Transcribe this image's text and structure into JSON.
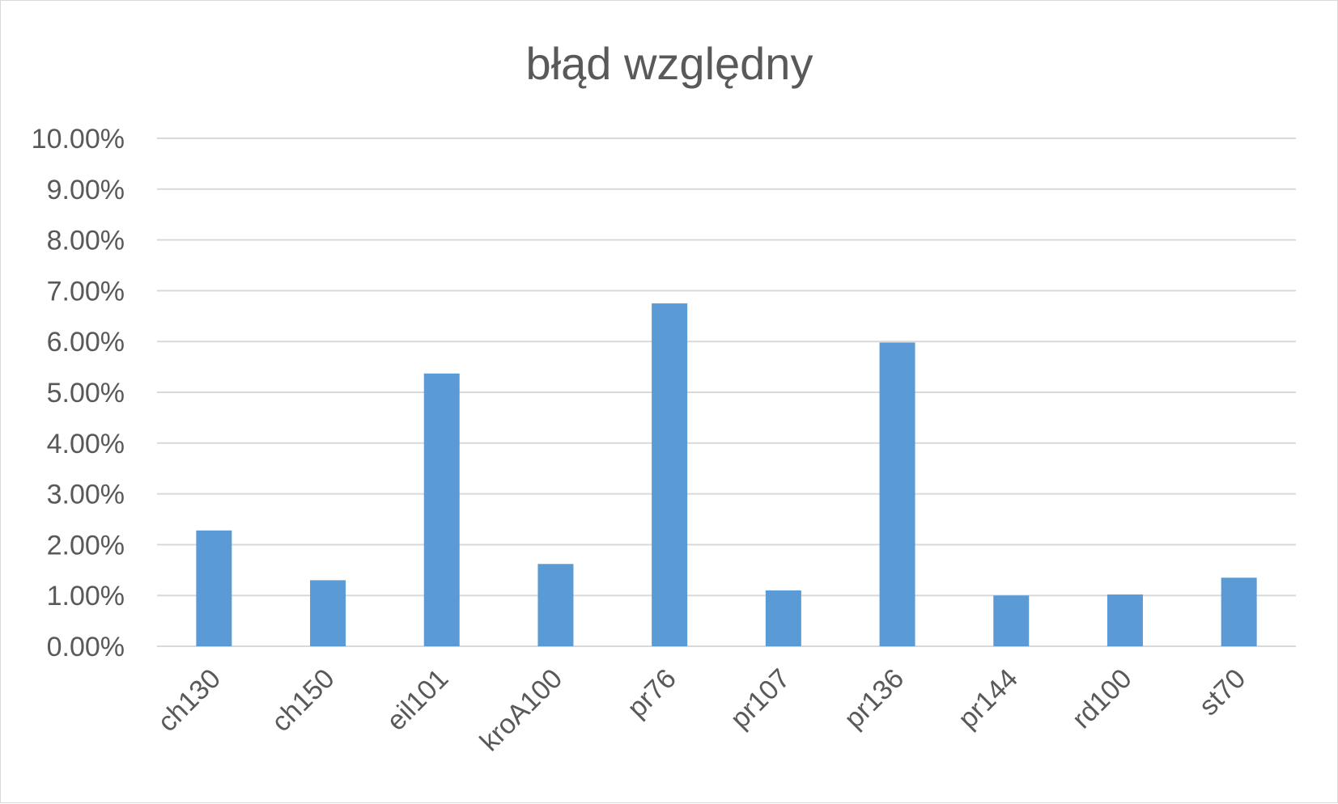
{
  "chart_data": {
    "type": "bar",
    "title": "błąd względny",
    "xlabel": "",
    "ylabel": "",
    "categories": [
      "ch130",
      "ch150",
      "eil101",
      "kroA100",
      "pr76",
      "pr107",
      "pr136",
      "pr144",
      "rd100",
      "st70"
    ],
    "values": [
      0.0228,
      0.013,
      0.0537,
      0.0162,
      0.0675,
      0.011,
      0.0598,
      0.01,
      0.0102,
      0.0135
    ],
    "ylim": [
      0,
      0.1
    ],
    "yticks": [
      0,
      0.01,
      0.02,
      0.03,
      0.04,
      0.05,
      0.06,
      0.07,
      0.08,
      0.09,
      0.1
    ],
    "ytick_labels": [
      "0.00%",
      "1.00%",
      "2.00%",
      "3.00%",
      "4.00%",
      "5.00%",
      "6.00%",
      "7.00%",
      "8.00%",
      "9.00%",
      "10.00%"
    ],
    "grid": true,
    "legend": "none",
    "bar_color": "#5b9bd5"
  }
}
